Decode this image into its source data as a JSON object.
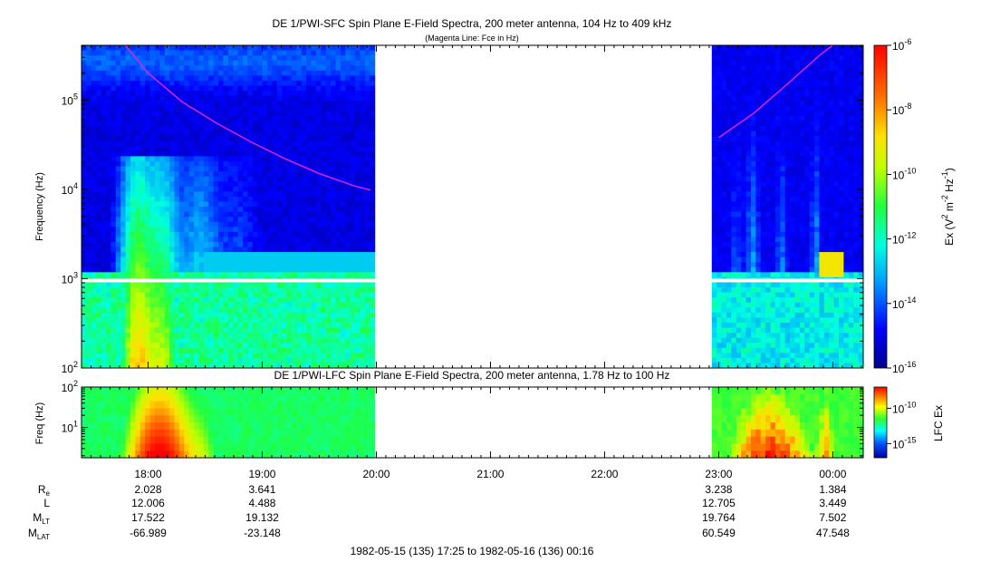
{
  "chart_data": [
    {
      "type": "heatmap",
      "title": "DE 1/PWI-SFC  Spin Plane E-Field Spectra, 200 meter antenna, 104 Hz to 409 kHz",
      "subtitle": "(Magenta Line: Fce in Hz)",
      "ylabel": "Frequency (Hz)",
      "y_scale": "log",
      "ylim": [
        100,
        409000
      ],
      "y_ticks": [
        {
          "value": 100,
          "base": "10",
          "exp": "2"
        },
        {
          "value": 1000,
          "base": "10",
          "exp": "3"
        },
        {
          "value": 10000,
          "base": "10",
          "exp": "4"
        },
        {
          "value": 100000,
          "base": "10",
          "exp": "5"
        }
      ],
      "colorbar": {
        "label_parts": [
          "Ex (V",
          "2",
          " m",
          "-2",
          " Hz",
          "-1",
          ")"
        ],
        "scale": "log",
        "range": [
          1e-16,
          1e-06
        ],
        "ticks": [
          {
            "value": 1e-06,
            "base": "10",
            "exp": "-6"
          },
          {
            "value": 1e-08,
            "base": "10",
            "exp": "-8"
          },
          {
            "value": 1e-10,
            "base": "10",
            "exp": "-10"
          },
          {
            "value": 1e-12,
            "base": "10",
            "exp": "-12"
          },
          {
            "value": 1e-14,
            "base": "10",
            "exp": "-14"
          },
          {
            "value": 1e-16,
            "base": "10",
            "exp": "-16"
          }
        ]
      },
      "data_coverage_hours": [
        [
          17.42,
          19.97
        ],
        [
          22.93,
          24.27
        ]
      ],
      "fce_line": {
        "color": "#e020e0",
        "segments": [
          {
            "t": [
              17.8,
              18.0,
              18.3,
              18.6,
              18.9,
              19.2,
              19.5,
              19.8,
              19.95
            ],
            "f": [
              409000,
              200000,
              95000,
              55000,
              34000,
              22000,
              15000,
              11000,
              9800
            ]
          },
          {
            "t": [
              23.0,
              23.3,
              23.6,
              23.9,
              24.0
            ],
            "f": [
              38000,
              70000,
              150000,
              330000,
              409000
            ]
          }
        ]
      }
    },
    {
      "type": "heatmap",
      "title": "DE 1/PWI-LFC  Spin Plane E-Field Spectra, 200 meter antenna, 1.78 Hz to 100 Hz",
      "ylabel": "Freq (Hz)",
      "y_scale": "log",
      "ylim": [
        1.78,
        100
      ],
      "y_ticks": [
        {
          "value": 10,
          "base": "10",
          "exp": "1"
        },
        {
          "value": 100,
          "base": "10",
          "exp": "2"
        }
      ],
      "colorbar": {
        "label_parts": [
          "LFC Ex"
        ],
        "scale": "log",
        "range": [
          1e-17,
          1e-07
        ],
        "ticks": [
          {
            "value": 1e-10,
            "base": "10",
            "exp": "-10"
          },
          {
            "value": 1e-15,
            "base": "10",
            "exp": "-15"
          }
        ]
      },
      "data_coverage_hours": [
        [
          17.42,
          19.97
        ],
        [
          22.93,
          24.27
        ]
      ]
    }
  ],
  "time_axis": {
    "range_hours": [
      17.4167,
      24.2667
    ],
    "ticks": [
      {
        "hour": 18,
        "label": "18:00"
      },
      {
        "hour": 19,
        "label": "19:00"
      },
      {
        "hour": 20,
        "label": "20:00"
      },
      {
        "hour": 21,
        "label": "21:00"
      },
      {
        "hour": 22,
        "label": "22:00"
      },
      {
        "hour": 23,
        "label": "23:00"
      },
      {
        "hour": 24,
        "label": "00:00"
      }
    ]
  },
  "ephemeris": {
    "rows": [
      {
        "label": "R",
        "sub": "e",
        "values": [
          "2.028",
          "3.641",
          "",
          "",
          "",
          "3.238",
          "1.384"
        ]
      },
      {
        "label": "L",
        "sub": "",
        "values": [
          "12.006",
          "4.488",
          "",
          "",
          "",
          "12.705",
          "3.449"
        ]
      },
      {
        "label": "M",
        "sub": "LT",
        "values": [
          "17.522",
          "19.132",
          "",
          "",
          "",
          "19.764",
          "7.502"
        ]
      },
      {
        "label": "M",
        "sub": "LAT",
        "values": [
          "-66.989",
          "-23.148",
          "",
          "",
          "",
          "60.549",
          "47.548"
        ]
      }
    ]
  },
  "footer": "1982-05-15 (135) 17:25 to 1982-05-16 (136) 00:16"
}
